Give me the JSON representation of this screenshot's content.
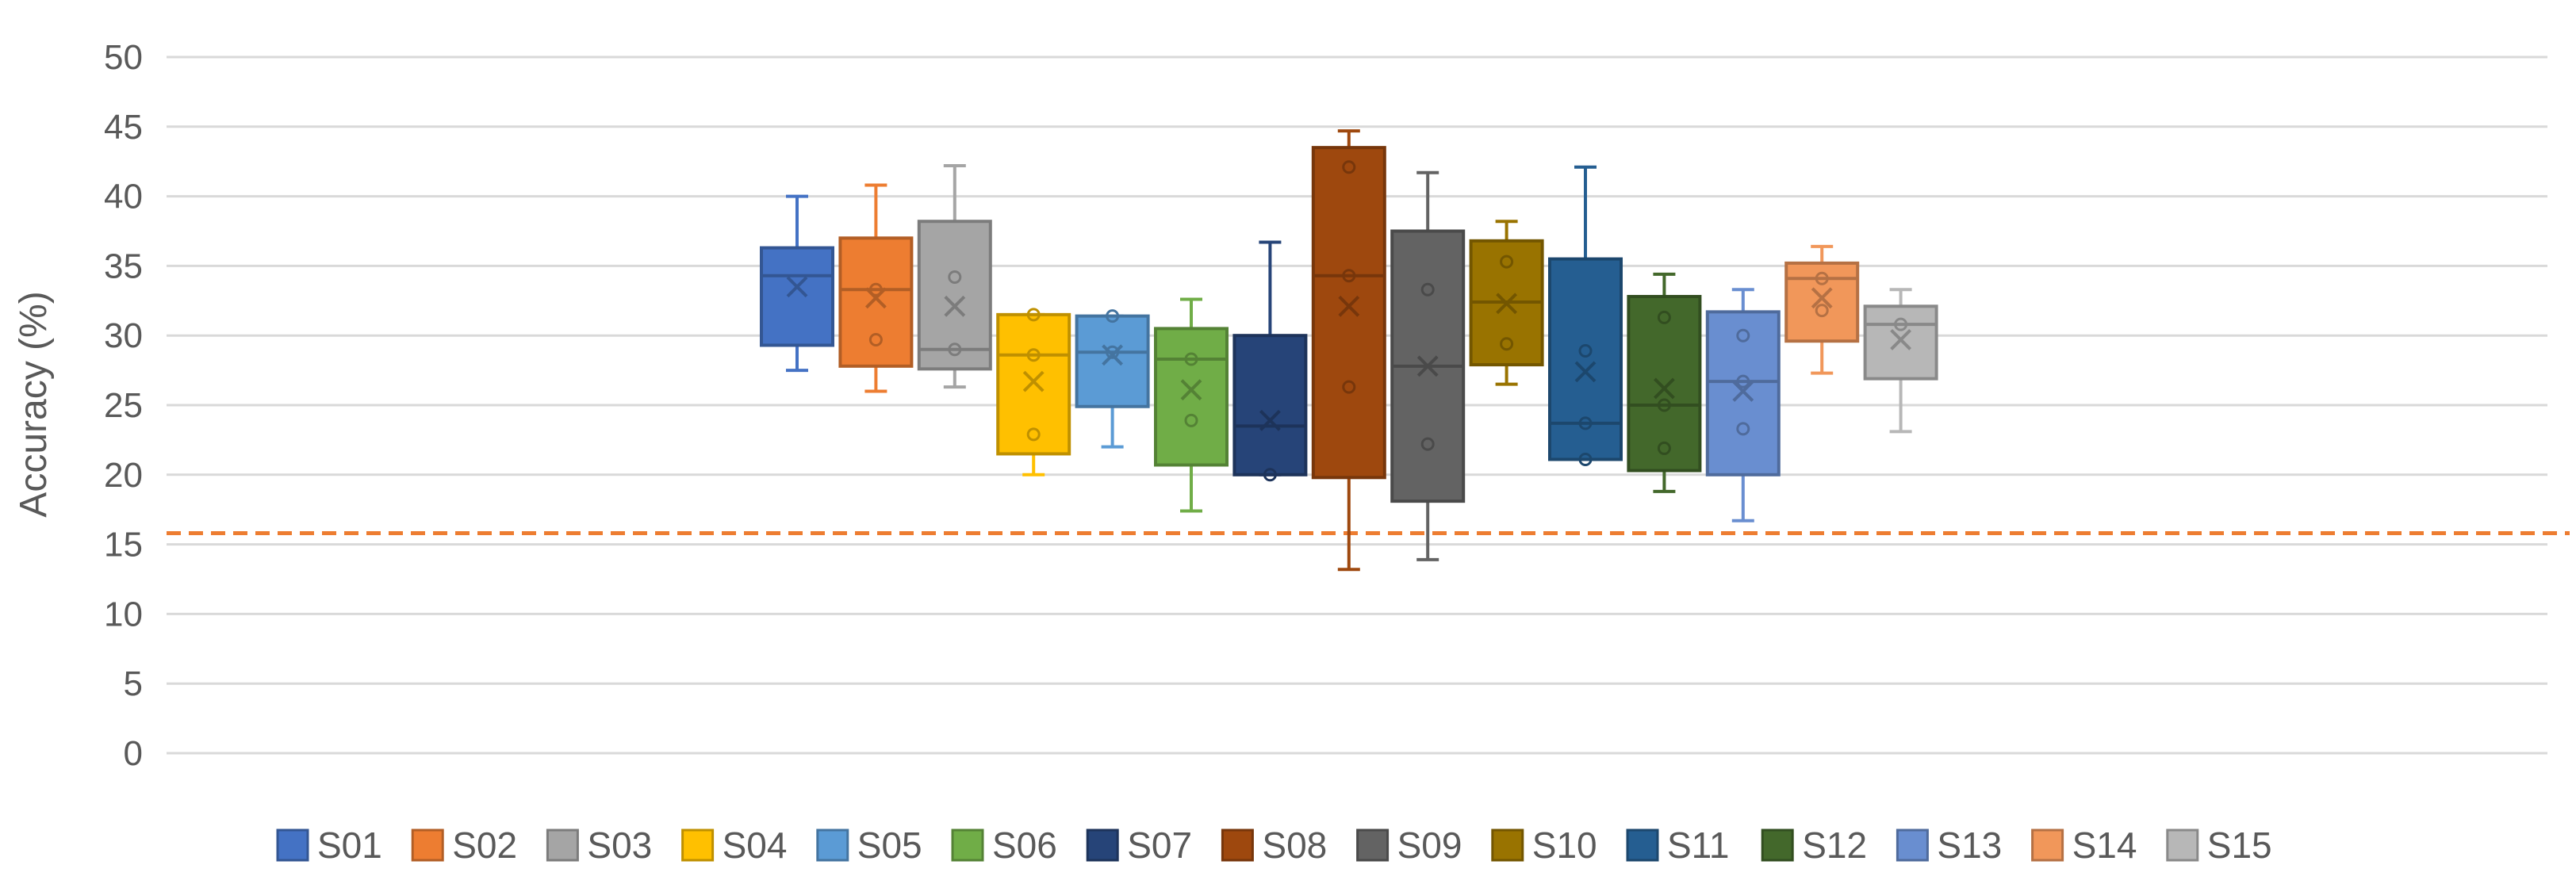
{
  "chart_data": {
    "type": "boxplot",
    "title": "",
    "xlabel": "",
    "ylabel": "Accuracy (%)",
    "ylim": [
      0,
      50
    ],
    "yticks": [
      0,
      5,
      10,
      15,
      20,
      25,
      30,
      35,
      40,
      45,
      50
    ],
    "grid": true,
    "legend_position": "bottom",
    "reference_line": {
      "value": 15.8,
      "style": "dashed",
      "color": "#ED7D31"
    },
    "series": [
      {
        "name": "S01",
        "color": "#4472C4",
        "min": 27.5,
        "q1": 29.3,
        "median": 34.3,
        "q3": 36.3,
        "max": 40.0,
        "mean": 33.5,
        "points": []
      },
      {
        "name": "S02",
        "color": "#ED7D31",
        "min": 26.0,
        "q1": 27.8,
        "median": 33.3,
        "q3": 37.0,
        "max": 40.8,
        "mean": 32.7,
        "points": [
          33.3,
          29.7
        ]
      },
      {
        "name": "S03",
        "color": "#A5A5A5",
        "min": 26.3,
        "q1": 27.6,
        "median": 29.0,
        "q3": 38.2,
        "max": 42.2,
        "mean": 32.1,
        "points": [
          34.2,
          29.0
        ]
      },
      {
        "name": "S04",
        "color": "#FFC000",
        "min": 20.0,
        "q1": 21.5,
        "median": 28.6,
        "q3": 31.5,
        "max": 31.5,
        "mean": 26.7,
        "points": [
          31.5,
          28.6,
          22.9
        ]
      },
      {
        "name": "S05",
        "color": "#5B9BD5",
        "min": 22.0,
        "q1": 24.9,
        "median": 28.8,
        "q3": 31.4,
        "max": 31.4,
        "mean": 28.6,
        "points": [
          31.4,
          28.8
        ]
      },
      {
        "name": "S06",
        "color": "#70AD47",
        "min": 17.4,
        "q1": 20.7,
        "median": 28.3,
        "q3": 30.5,
        "max": 32.6,
        "mean": 26.1,
        "points": [
          28.3,
          23.9
        ]
      },
      {
        "name": "S07",
        "color": "#264478",
        "min": 20.0,
        "q1": 20.0,
        "median": 23.5,
        "q3": 30.0,
        "max": 36.7,
        "mean": 23.9,
        "points": [
          20.0
        ]
      },
      {
        "name": "S08",
        "color": "#9E480E",
        "min": 13.2,
        "q1": 19.8,
        "median": 34.3,
        "q3": 43.5,
        "max": 44.7,
        "mean": 32.1,
        "points": [
          42.1,
          34.3,
          26.3
        ]
      },
      {
        "name": "S09",
        "color": "#636363",
        "min": 13.9,
        "q1": 18.1,
        "median": 27.8,
        "q3": 37.5,
        "max": 41.7,
        "mean": 27.8,
        "points": [
          33.3,
          22.2
        ]
      },
      {
        "name": "S10",
        "color": "#997300",
        "min": 26.5,
        "q1": 27.9,
        "median": 32.4,
        "q3": 36.8,
        "max": 38.2,
        "mean": 32.3,
        "points": [
          35.3,
          29.4
        ]
      },
      {
        "name": "S11",
        "color": "#255E91",
        "min": 21.1,
        "q1": 21.1,
        "median": 23.7,
        "q3": 35.5,
        "max": 42.1,
        "mean": 27.4,
        "points": [
          28.9,
          23.7,
          21.1
        ]
      },
      {
        "name": "S12",
        "color": "#43682B",
        "min": 18.8,
        "q1": 20.3,
        "median": 25.0,
        "q3": 32.8,
        "max": 34.4,
        "mean": 26.2,
        "points": [
          31.3,
          25.0,
          21.9
        ]
      },
      {
        "name": "S13",
        "color": "#698ED0",
        "min": 16.7,
        "q1": 20.0,
        "median": 26.7,
        "q3": 31.7,
        "max": 33.3,
        "mean": 26.0,
        "points": [
          30.0,
          26.7,
          23.3
        ]
      },
      {
        "name": "S14",
        "color": "#F1975A",
        "min": 27.3,
        "q1": 29.6,
        "median": 34.1,
        "q3": 35.2,
        "max": 36.4,
        "mean": 32.7,
        "points": [
          34.1,
          31.8
        ]
      },
      {
        "name": "S15",
        "color": "#B7B7B7",
        "min": 23.1,
        "q1": 26.9,
        "median": 30.8,
        "q3": 32.1,
        "max": 33.3,
        "mean": 29.7,
        "points": [
          30.8
        ]
      }
    ]
  }
}
